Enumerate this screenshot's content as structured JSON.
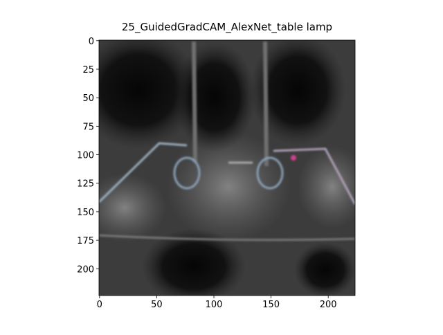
{
  "chart_data": {
    "type": "image",
    "title": "25_GuidedGradCAM_AlexNet_table lamp",
    "xlim": [
      -0.5,
      223.5
    ],
    "ylim": [
      223.5,
      -0.5
    ],
    "xticks": [
      0,
      50,
      100,
      150,
      200
    ],
    "yticks": [
      0,
      25,
      50,
      75,
      100,
      125,
      150,
      175,
      200
    ]
  }
}
